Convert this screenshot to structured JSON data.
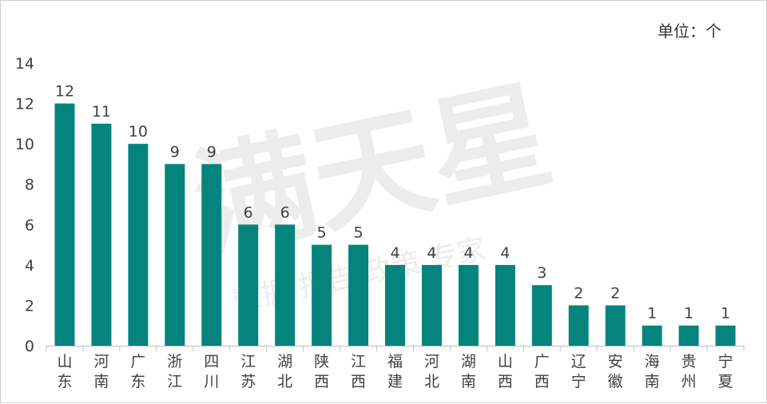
{
  "unit_label": "单位：个",
  "watermark": {
    "main": "满天星",
    "sub": "数据 报告 政策 专家"
  },
  "chart_data": {
    "type": "bar",
    "title": "",
    "xlabel": "",
    "ylabel": "",
    "unit": "个",
    "categories": [
      "山东",
      "河南",
      "广东",
      "浙江",
      "四川",
      "江苏",
      "湖北",
      "陕西",
      "江西",
      "福建",
      "河北",
      "湖南",
      "山西",
      "广西",
      "辽宁",
      "安徽",
      "海南",
      "贵州",
      "宁夏"
    ],
    "values": [
      12,
      11,
      10,
      9,
      9,
      6,
      6,
      5,
      5,
      4,
      4,
      4,
      4,
      3,
      2,
      2,
      1,
      1,
      1
    ],
    "ylim": [
      0,
      14
    ],
    "yticks": [
      0,
      2,
      4,
      6,
      8,
      10,
      12,
      14
    ],
    "bar_color": "#05847d",
    "grid": false,
    "data_labels": true
  }
}
